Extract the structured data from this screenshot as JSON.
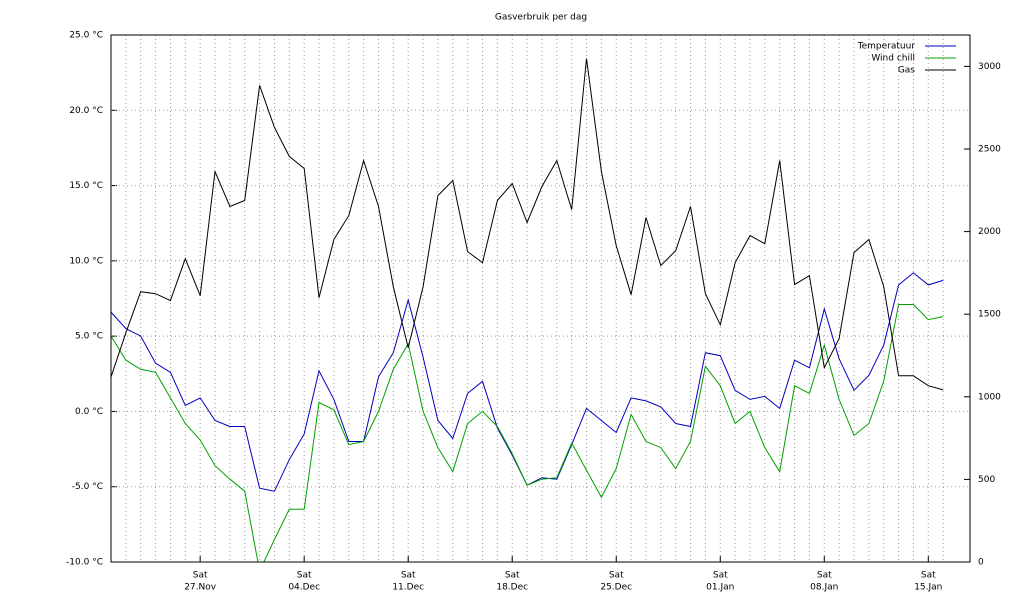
{
  "chart_data": {
    "type": "line",
    "title": "Gasverbruik per dag",
    "categories": [
      null,
      null,
      null,
      null,
      null,
      null,
      [
        "Sat",
        "27.Nov"
      ],
      null,
      null,
      null,
      null,
      null,
      null,
      [
        "Sat",
        "04.Dec"
      ],
      null,
      null,
      null,
      null,
      null,
      null,
      [
        "Sat",
        "11.Dec"
      ],
      null,
      null,
      null,
      null,
      null,
      null,
      [
        "Sat",
        "18.Dec"
      ],
      null,
      null,
      null,
      null,
      null,
      null,
      [
        "Sat",
        "25.Dec"
      ],
      null,
      null,
      null,
      null,
      null,
      null,
      [
        "Sat",
        "01.Jan"
      ],
      null,
      null,
      null,
      null,
      null,
      null,
      [
        "Sat",
        "08.Jan"
      ],
      null,
      null,
      null,
      null,
      null,
      null,
      [
        "Sat",
        "15.Jan"
      ],
      null
    ],
    "series": [
      {
        "name": "Temperatuur",
        "color": "#0000c0",
        "values": [
          6.6,
          5.5,
          5.0,
          3.2,
          2.6,
          0.4,
          0.9,
          -0.6,
          -1.0,
          -1.0,
          -5.1,
          -5.3,
          -3.2,
          -1.5,
          2.7,
          0.8,
          -2.0,
          -2.0,
          2.3,
          3.9,
          7.4,
          3.6,
          -0.6,
          -1.8,
          1.2,
          2.0,
          -1.1,
          -2.9,
          -4.9,
          -4.4,
          -4.5,
          -2.2,
          0.2,
          -0.6,
          -1.4,
          0.9,
          0.7,
          0.3,
          -0.8,
          -1.0,
          3.9,
          3.7,
          1.4,
          0.8,
          1.0,
          0.2,
          3.4,
          2.9,
          6.8,
          3.5,
          1.4,
          2.4,
          4.4,
          8.4,
          9.2,
          8.4,
          8.7
        ]
      },
      {
        "name": "Wind chill",
        "color": "#00a000",
        "values": [
          5.0,
          3.4,
          2.8,
          2.6,
          0.9,
          -0.8,
          -1.9,
          -3.6,
          -4.5,
          -5.3,
          -10.6,
          -8.5,
          -6.5,
          -6.5,
          0.6,
          0.1,
          -2.2,
          -2.0,
          0.0,
          2.8,
          4.5,
          0.0,
          -2.4,
          -4.0,
          -0.8,
          0.0,
          -1.0,
          -2.8,
          -4.9,
          -4.5,
          -4.4,
          -2.1,
          -3.9,
          -5.7,
          -3.8,
          -0.2,
          -2.0,
          -2.4,
          -3.8,
          -2.0,
          3.0,
          1.7,
          -0.8,
          0.0,
          -2.4,
          -4.0,
          1.7,
          1.2,
          4.4,
          0.8,
          -1.6,
          -0.8,
          2.0,
          7.1,
          7.1,
          6.1,
          6.3
        ]
      },
      {
        "name": "Gas",
        "color": "#000000",
        "axis": "y2",
        "values": [
          1120,
          1388,
          1636,
          1624,
          1582,
          1836,
          1612,
          2364,
          2152,
          2188,
          2885,
          2630,
          2455,
          2382,
          1600,
          1952,
          2097,
          2430,
          2152,
          1667,
          1297,
          1667,
          2218,
          2309,
          1879,
          1812,
          2188,
          2291,
          2055,
          2273,
          2430,
          2133,
          3048,
          2364,
          1915,
          1618,
          2085,
          1794,
          1885,
          2152,
          1624,
          1436,
          1812,
          1976,
          1927,
          2430,
          1679,
          1733,
          1176,
          1352,
          1873,
          1952,
          1667,
          1127,
          1127,
          1067,
          1042
        ]
      }
    ],
    "ylim": [
      -10,
      25
    ],
    "yticks": [
      {
        "value": -10,
        "label": "-10.0 °C"
      },
      {
        "value": -5,
        "label": "-5.0 °C"
      },
      {
        "value": 0,
        "label": "0.0 °C"
      },
      {
        "value": 5,
        "label": "5.0 °C"
      },
      {
        "value": 10,
        "label": "10.0 °C"
      },
      {
        "value": 15,
        "label": "15.0 °C"
      },
      {
        "value": 20,
        "label": "20.0 °C"
      },
      {
        "value": 25,
        "label": "25.0 °C"
      }
    ],
    "y2lim": [
      0,
      3190
    ],
    "y2ticks": [
      0,
      500,
      1000,
      1500,
      2000,
      2500,
      3000
    ],
    "grid": true,
    "legend": "top-right"
  }
}
